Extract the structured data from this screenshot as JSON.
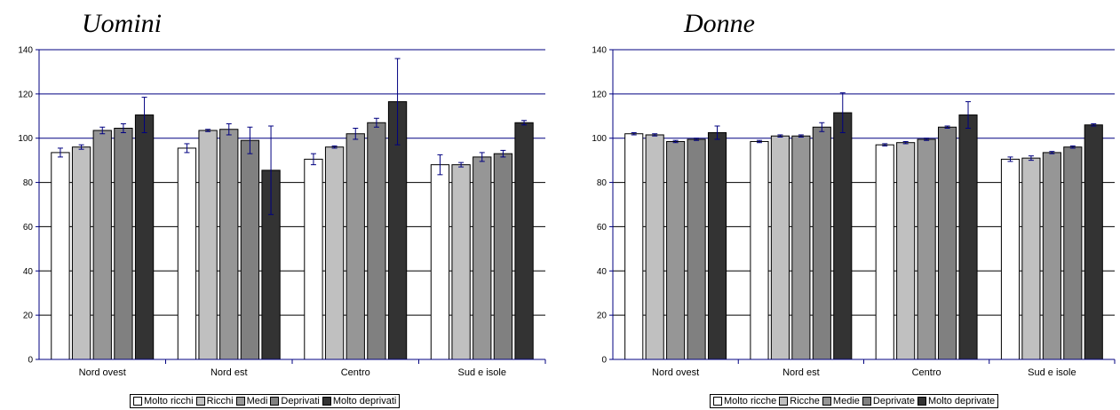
{
  "titles": {
    "left": "Uomini",
    "right": "Donne"
  },
  "colors": [
    "#ffffff",
    "#c0c0c0",
    "#969696",
    "#808080",
    "#333333"
  ],
  "chart_data": [
    {
      "type": "bar",
      "title": "Uomini",
      "categories": [
        "Nord ovest",
        "Nord est",
        "Centro",
        "Sud e isole"
      ],
      "ylim": [
        0,
        140
      ],
      "yticks": [
        0,
        20,
        40,
        60,
        80,
        100,
        120,
        140
      ],
      "grid": true,
      "legend": "bottom",
      "series": [
        {
          "name": "Molto ricchi",
          "values": [
            93.5,
            95.5,
            90.5,
            88
          ],
          "err": [
            2,
            2,
            2.5,
            4.5
          ]
        },
        {
          "name": "Ricchi",
          "values": [
            96,
            103.5,
            96,
            88
          ],
          "err": [
            1,
            0.5,
            0.5,
            1
          ]
        },
        {
          "name": "Medi",
          "values": [
            103.5,
            104,
            102,
            91.5
          ],
          "err": [
            1.5,
            2.5,
            2.5,
            2
          ]
        },
        {
          "name": "Deprivati",
          "values": [
            104.5,
            99,
            107,
            93
          ],
          "err": [
            2,
            6,
            2,
            1.5
          ]
        },
        {
          "name": "Molto deprivati",
          "values": [
            110.5,
            85.5,
            116.5,
            107
          ],
          "err": [
            8,
            20,
            19.5,
            1
          ]
        }
      ]
    },
    {
      "type": "bar",
      "title": "Donne",
      "categories": [
        "Nord ovest",
        "Nord est",
        "Centro",
        "Sud e isole"
      ],
      "ylim": [
        0,
        140
      ],
      "yticks": [
        0,
        20,
        40,
        60,
        80,
        100,
        120,
        140
      ],
      "grid": true,
      "legend": "bottom",
      "series": [
        {
          "name": "Molto ricche",
          "values": [
            102,
            98.5,
            97,
            90.5
          ],
          "err": [
            0.5,
            0.5,
            0.5,
            1
          ]
        },
        {
          "name": "Ricche",
          "values": [
            101.5,
            101,
            98,
            91
          ],
          "err": [
            0.5,
            0.5,
            0.5,
            1
          ]
        },
        {
          "name": "Medie",
          "values": [
            98.5,
            101,
            99.5,
            93.5
          ],
          "err": [
            0.5,
            0.5,
            0.5,
            0.5
          ]
        },
        {
          "name": "Deprivate",
          "values": [
            99.5,
            105,
            105,
            96
          ],
          "err": [
            0.5,
            2,
            0.5,
            0.5
          ]
        },
        {
          "name": "Molto deprivate",
          "values": [
            102.5,
            111.5,
            110.5,
            106
          ],
          "err": [
            3,
            9,
            6,
            0.5
          ]
        }
      ]
    }
  ]
}
